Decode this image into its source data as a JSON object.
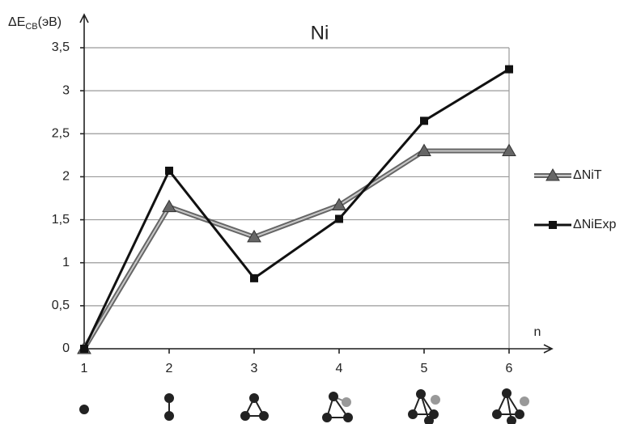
{
  "chart_data": {
    "type": "line",
    "title": "Ni",
    "y_label": {
      "main": "ΔE",
      "sub": "СВ",
      "unit": "(эВ)"
    },
    "x_label": "n",
    "x": [
      1,
      2,
      3,
      4,
      5,
      6
    ],
    "xlim": [
      1,
      6
    ],
    "xticks": [
      1,
      2,
      3,
      4,
      5,
      6
    ],
    "ylim": [
      0,
      3.5
    ],
    "yticks": [
      0,
      {
        "value": 0.5,
        "label": "0,5"
      },
      1,
      {
        "value": 1.5,
        "label": "1,5"
      },
      2,
      {
        "value": 2.5,
        "label": "2,5"
      },
      3,
      {
        "value": 3.5,
        "label": "3,5"
      }
    ],
    "grid": true,
    "legend": "right",
    "series": [
      {
        "name": "ΔNiT",
        "color": "#666666",
        "marker": "triangle",
        "values": [
          0,
          1.65,
          1.3,
          1.67,
          2.3,
          2.3
        ]
      },
      {
        "name": "ΔNiExp",
        "color": "#111111",
        "marker": "square",
        "values": [
          0,
          2.07,
          0.82,
          1.51,
          2.65,
          3.25
        ]
      }
    ]
  }
}
